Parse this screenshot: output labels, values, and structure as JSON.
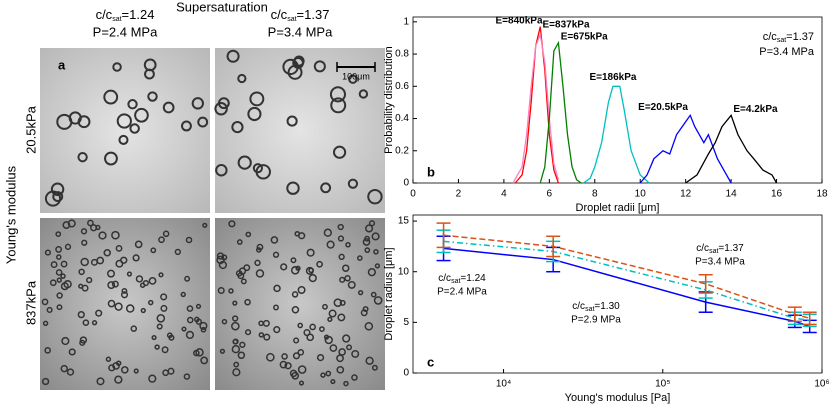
{
  "figure": {
    "heading": "Supersaturation",
    "columns": [
      {
        "main": "c/c",
        "sub": "sat",
        "value": "=1.24",
        "pressure": "P=2.4 MPa"
      },
      {
        "main": "c/c",
        "sub": "sat",
        "value": "=1.37",
        "pressure": "P=3.4 MPa"
      }
    ],
    "row_axis": "Young's modulus",
    "rows": [
      "20.5kPa",
      "837kPa"
    ],
    "panel": "a",
    "scale_bar": "100μm"
  },
  "chart_data": [
    {
      "type": "line",
      "panel": "b",
      "xlabel": "Droplet radii [μm]",
      "ylabel": "Probability distribution",
      "annotation": {
        "main": "c/c",
        "sub": "sat",
        "value": "=1.37",
        "pressure": "P=3.4 MPa"
      },
      "xlim": [
        0,
        18
      ],
      "xticks": [
        0,
        2,
        4,
        6,
        8,
        10,
        12,
        14,
        16,
        18
      ],
      "ylim": [
        0,
        1.03
      ],
      "yticks": [
        0,
        0.2,
        0.4,
        0.6,
        0.8,
        1
      ],
      "series": [
        {
          "name": "E=840kPa",
          "color": "#ff0000",
          "x": [
            4.5,
            4.8,
            5,
            5.2,
            5.4,
            5.6,
            5.8,
            6,
            6.2,
            6.4
          ],
          "values": [
            0,
            0.05,
            0.2,
            0.5,
            0.85,
            0.97,
            0.7,
            0.3,
            0.08,
            0
          ]
        },
        {
          "name": "E=837kPa",
          "color": "#ff7fbf",
          "x": [
            4.4,
            4.8,
            5,
            5.2,
            5.4,
            5.6,
            5.8,
            6,
            6.2,
            6.4
          ],
          "values": [
            0,
            0.1,
            0.3,
            0.6,
            0.85,
            0.92,
            0.75,
            0.4,
            0.12,
            0.02
          ]
        },
        {
          "name": "E=675kPa",
          "color": "#008000",
          "x": [
            5.6,
            5.8,
            6,
            6.2,
            6.4,
            6.6,
            6.8,
            7,
            7.2,
            7.4
          ],
          "values": [
            0,
            0.1,
            0.4,
            0.82,
            0.87,
            0.6,
            0.3,
            0.1,
            0.02,
            0
          ]
        },
        {
          "name": "E=186kPa",
          "color": "#00bfbf",
          "x": [
            7.5,
            7.8,
            8,
            8.3,
            8.6,
            8.8,
            9.1,
            9.3,
            9.6,
            10,
            10.4
          ],
          "values": [
            0,
            0.03,
            0.1,
            0.25,
            0.5,
            0.6,
            0.6,
            0.45,
            0.2,
            0.05,
            0
          ]
        },
        {
          "name": "E=20.5kPa",
          "color": "#0000ff",
          "x": [
            10,
            10.3,
            10.6,
            11,
            11.3,
            11.6,
            12,
            12.2,
            12.4,
            12.8,
            13,
            13.4,
            13.8,
            14
          ],
          "values": [
            0,
            0.05,
            0.15,
            0.2,
            0.18,
            0.3,
            0.38,
            0.42,
            0.35,
            0.25,
            0.3,
            0.15,
            0.05,
            0
          ]
        },
        {
          "name": "E=4.2kPa",
          "color": "#000000",
          "x": [
            12,
            12.5,
            13,
            13.3,
            13.6,
            14,
            14.3,
            14.7,
            15,
            15.4,
            15.8,
            16
          ],
          "values": [
            0,
            0.05,
            0.18,
            0.25,
            0.35,
            0.42,
            0.3,
            0.2,
            0.15,
            0.08,
            0.05,
            0
          ]
        }
      ]
    },
    {
      "type": "errorline",
      "panel": "c",
      "xlabel": "Young's modulus [Pa]",
      "ylabel": "Droplet radius [μm]",
      "xscale": "log",
      "xlim": [
        2700,
        1000000
      ],
      "xticks": [
        {
          "value": 10000,
          "label": "10⁴"
        },
        {
          "value": 100000,
          "label": "10⁵"
        },
        {
          "value": 1000000,
          "label": "10⁶"
        }
      ],
      "ylim": [
        0,
        15.6
      ],
      "yticks": [
        0,
        5,
        10,
        15
      ],
      "series": [
        {
          "name": {
            "main": "c/c",
            "sub": "sat",
            "value": "=1.24",
            "pressure": "P=2.4 MPa"
          },
          "color": "#0000ff",
          "dash": "solid",
          "x": [
            4200,
            20500,
            186000,
            675000,
            837000
          ],
          "values": [
            12.3,
            11.2,
            7.0,
            5.1,
            4.6
          ],
          "errors": [
            1.2,
            1.2,
            1.0,
            0.6,
            0.6
          ]
        },
        {
          "name": {
            "main": "c/c",
            "sub": "sat",
            "value": "=1.30",
            "pressure": "P=2.9 MPa"
          },
          "color": "#00bfbf",
          "dash": "dashdot",
          "x": [
            4200,
            20500,
            186000,
            675000,
            837000
          ],
          "values": [
            13.0,
            12.0,
            8.2,
            5.4,
            5.2
          ],
          "errors": [
            1.1,
            1.0,
            0.8,
            0.6,
            0.6
          ]
        },
        {
          "name": {
            "main": "c/c",
            "sub": "sat",
            "value": "=1.37",
            "pressure": "P=3.4 MPa"
          },
          "color": "#d95319",
          "dash": "dashed",
          "x": [
            4200,
            20500,
            186000,
            675000,
            837000
          ],
          "values": [
            13.6,
            12.5,
            8.8,
            5.8,
            5.4
          ],
          "errors": [
            1.2,
            1.0,
            0.9,
            0.7,
            0.6
          ]
        }
      ]
    }
  ]
}
